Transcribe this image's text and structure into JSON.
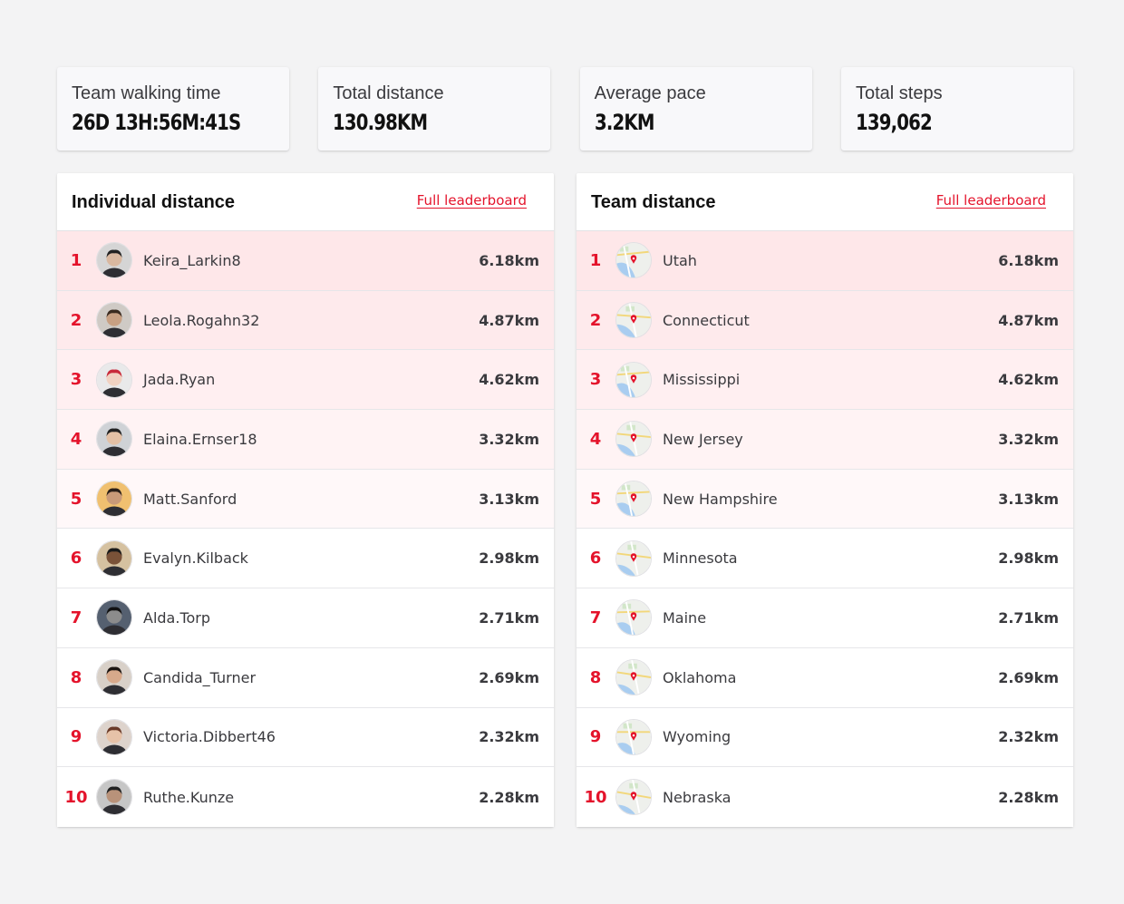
{
  "stats": [
    {
      "label": "Team walking time",
      "value": "26D 13H:56M:41S"
    },
    {
      "label": "Total distance",
      "value": "130.98KM"
    },
    {
      "label": "Average pace",
      "value": "3.2KM"
    },
    {
      "label": "Total steps",
      "value": "139,062"
    }
  ],
  "colors": {
    "accent": "#e4132b",
    "background": "#f3f3f4"
  },
  "individual": {
    "title": "Individual distance",
    "link": "Full leaderboard",
    "rows": [
      {
        "rank": "1",
        "name": "Keira_Larkin8",
        "distance": "6.18km"
      },
      {
        "rank": "2",
        "name": "Leola.Rogahn32",
        "distance": "4.87km"
      },
      {
        "rank": "3",
        "name": "Jada.Ryan",
        "distance": "4.62km"
      },
      {
        "rank": "4",
        "name": "Elaina.Ernser18",
        "distance": "3.32km"
      },
      {
        "rank": "5",
        "name": "Matt.Sanford",
        "distance": "3.13km"
      },
      {
        "rank": "6",
        "name": "Evalyn.Kilback",
        "distance": "2.98km"
      },
      {
        "rank": "7",
        "name": "Alda.Torp",
        "distance": "2.71km"
      },
      {
        "rank": "8",
        "name": "Candida_Turner",
        "distance": "2.69km"
      },
      {
        "rank": "9",
        "name": "Victoria.Dibbert46",
        "distance": "2.32km"
      },
      {
        "rank": "10",
        "name": "Ruthe.Kunze",
        "distance": "2.28km"
      }
    ]
  },
  "team": {
    "title": "Team distance",
    "link": "Full leaderboard",
    "rows": [
      {
        "rank": "1",
        "name": "Utah",
        "distance": "6.18km"
      },
      {
        "rank": "2",
        "name": "Connecticut",
        "distance": "4.87km"
      },
      {
        "rank": "3",
        "name": "Mississippi",
        "distance": "4.62km"
      },
      {
        "rank": "4",
        "name": "New Jersey",
        "distance": "3.32km"
      },
      {
        "rank": "5",
        "name": "New Hampshire",
        "distance": "3.13km"
      },
      {
        "rank": "6",
        "name": "Minnesota",
        "distance": "2.98km"
      },
      {
        "rank": "7",
        "name": "Maine",
        "distance": "2.71km"
      },
      {
        "rank": "8",
        "name": "Oklahoma",
        "distance": "2.69km"
      },
      {
        "rank": "9",
        "name": "Wyoming",
        "distance": "2.32km"
      },
      {
        "rank": "10",
        "name": "Nebraska",
        "distance": "2.28km"
      }
    ]
  }
}
